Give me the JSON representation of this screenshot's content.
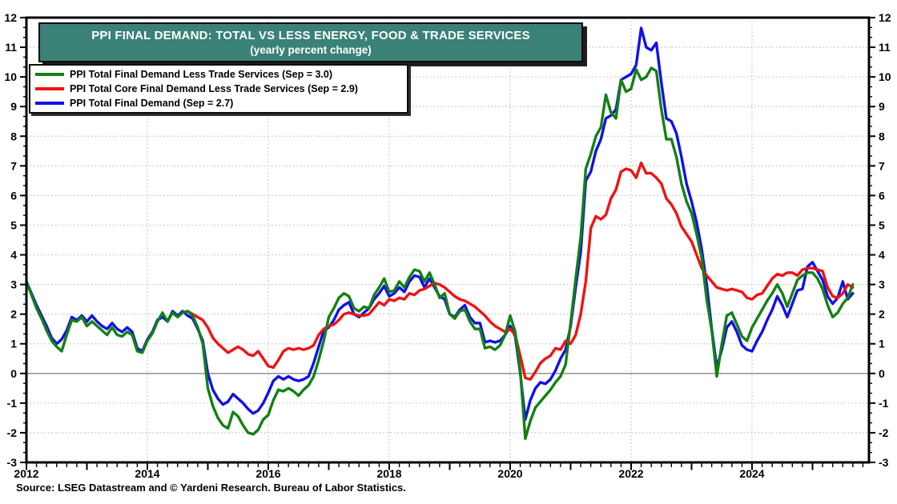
{
  "title": {
    "line1": "PPI FINAL DEMAND: TOTAL VS LESS ENERGY, FOOD & TRADE SERVICES",
    "line2": "(yearly percent change)"
  },
  "source": "Source: LSEG Datastream and © Yardeni Research. Bureau of Labor Statistics.",
  "colors": {
    "title_background": "#3a8178",
    "title_text": "#ffffff",
    "green_line": "#138013",
    "red_line": "#f01212",
    "blue_line": "#1111e8",
    "grid_dotted": "#c3c3c3",
    "zero_line": "#9a9a9a",
    "axis": "#000000"
  },
  "chart_data": {
    "type": "line",
    "title": "PPI FINAL DEMAND: TOTAL VS LESS ENERGY, FOOD & TRADE SERVICES",
    "subtitle": "(yearly percent change)",
    "x_start_year": 2012,
    "x_step_months": 1,
    "xlim": [
      2012,
      2025.93
    ],
    "ylim": [
      -3,
      12
    ],
    "y_tick_step": 1,
    "y_tick_labels": [
      "-3",
      "-2",
      "-1",
      "0",
      "1",
      "2",
      "3",
      "4",
      "5",
      "6",
      "7",
      "8",
      "9",
      "10",
      "11",
      "12"
    ],
    "x_tick_label_years": [
      2012,
      2014,
      2016,
      2018,
      2020,
      2022,
      2024
    ],
    "grid": {
      "horizontal": "dotted at each integer, solid at zero",
      "vertical": "dotted at labeled even years",
      "legend_position": "top-left"
    },
    "series": [
      {
        "name": "PPI Total Final Demand Less Trade Services (Sep = 3.0)",
        "color": "#138013",
        "z": 2,
        "values": [
          3.1,
          2.65,
          2.2,
          1.85,
          1.45,
          1.1,
          0.9,
          0.75,
          1.3,
          1.8,
          1.75,
          1.9,
          1.6,
          1.75,
          1.6,
          1.45,
          1.3,
          1.55,
          1.3,
          1.25,
          1.4,
          1.3,
          0.75,
          0.7,
          1.1,
          1.35,
          1.75,
          2.05,
          1.75,
          2.05,
          1.9,
          2.05,
          2.1,
          1.95,
          1.55,
          1.0,
          -0.5,
          -1.1,
          -1.5,
          -1.75,
          -1.85,
          -1.3,
          -1.45,
          -1.75,
          -2.0,
          -2.05,
          -1.9,
          -1.55,
          -1.4,
          -0.9,
          -0.55,
          -0.6,
          -0.5,
          -0.6,
          -0.75,
          -0.55,
          -0.4,
          -0.1,
          0.45,
          1.1,
          1.9,
          2.2,
          2.55,
          2.7,
          2.6,
          2.2,
          2.1,
          2.25,
          2.2,
          2.65,
          2.9,
          3.2,
          2.75,
          2.8,
          3.1,
          2.9,
          3.25,
          3.5,
          3.45,
          3.1,
          3.4,
          3.0,
          2.55,
          2.7,
          2.0,
          1.85,
          2.1,
          2.15,
          1.75,
          1.5,
          1.5,
          0.85,
          0.9,
          0.8,
          0.95,
          1.3,
          1.95,
          1.4,
          0.1,
          -2.2,
          -1.6,
          -1.15,
          -0.95,
          -0.75,
          -0.55,
          -0.3,
          -0.1,
          0.3,
          1.7,
          3.2,
          4.6,
          6.9,
          7.4,
          8.0,
          8.3,
          9.4,
          8.8,
          8.6,
          9.9,
          9.5,
          9.6,
          10.25,
          9.9,
          10.0,
          10.3,
          10.2,
          8.9,
          7.9,
          7.9,
          7.3,
          6.4,
          5.8,
          5.4,
          4.7,
          3.9,
          2.5,
          1.45,
          -0.1,
          1.0,
          1.95,
          2.05,
          1.65,
          1.25,
          1.1,
          1.55,
          1.85,
          2.15,
          2.45,
          2.7,
          3.0,
          2.7,
          2.25,
          2.7,
          3.15,
          3.3,
          3.4,
          3.4,
          3.2,
          2.85,
          2.3,
          1.9,
          2.05,
          2.35,
          2.55,
          3.0
        ]
      },
      {
        "name": "PPI Total Core Final Demand Less Trade Services (Sep = 2.9)",
        "color": "#f01212",
        "z": 1,
        "values": [
          null,
          null,
          null,
          null,
          null,
          null,
          null,
          null,
          null,
          null,
          null,
          null,
          null,
          null,
          null,
          null,
          null,
          null,
          null,
          null,
          null,
          null,
          null,
          null,
          null,
          null,
          null,
          null,
          null,
          null,
          null,
          2.05,
          2.1,
          2.0,
          1.9,
          1.8,
          1.55,
          1.2,
          1.0,
          0.85,
          0.7,
          0.8,
          0.9,
          0.8,
          0.65,
          0.6,
          0.75,
          0.5,
          0.25,
          0.2,
          0.45,
          0.75,
          0.85,
          0.8,
          0.85,
          0.8,
          0.85,
          0.95,
          1.3,
          1.5,
          1.6,
          1.65,
          1.8,
          2.0,
          2.05,
          2.0,
          1.95,
          1.95,
          2.0,
          2.2,
          2.4,
          2.3,
          2.5,
          2.45,
          2.55,
          2.5,
          2.7,
          2.65,
          2.8,
          2.85,
          2.95,
          3.05,
          3.0,
          2.9,
          2.75,
          2.6,
          2.5,
          2.45,
          2.35,
          2.25,
          2.1,
          1.95,
          1.75,
          1.6,
          1.5,
          1.4,
          1.5,
          1.3,
          0.6,
          -0.15,
          -0.2,
          0.05,
          0.35,
          0.5,
          0.6,
          0.85,
          0.8,
          1.1,
          1.0,
          1.3,
          2.0,
          3.1,
          4.9,
          5.3,
          5.2,
          5.35,
          5.9,
          6.2,
          6.8,
          6.9,
          6.85,
          6.6,
          7.1,
          6.75,
          6.75,
          6.6,
          6.4,
          5.9,
          5.7,
          5.4,
          4.95,
          4.7,
          4.45,
          4.0,
          3.55,
          3.3,
          3.1,
          2.9,
          2.85,
          2.8,
          2.85,
          2.8,
          2.75,
          2.55,
          2.5,
          2.65,
          2.7,
          2.95,
          3.2,
          3.35,
          3.3,
          3.4,
          3.4,
          3.3,
          3.5,
          3.55,
          3.55,
          3.5,
          3.45,
          2.9,
          2.6,
          2.55,
          2.7,
          3.0,
          2.9
        ]
      },
      {
        "name": "PPI Total Final Demand (Sep = 2.7)",
        "color": "#1111e8",
        "z": 0,
        "values": [
          3.1,
          2.7,
          2.3,
          1.95,
          1.6,
          1.2,
          1.0,
          1.15,
          1.45,
          1.9,
          1.8,
          1.95,
          1.75,
          1.95,
          1.75,
          1.6,
          1.5,
          1.7,
          1.5,
          1.4,
          1.55,
          1.4,
          0.85,
          0.75,
          1.15,
          1.4,
          1.8,
          1.9,
          1.75,
          2.1,
          1.95,
          2.1,
          1.95,
          1.85,
          1.5,
          1.1,
          0.0,
          -0.55,
          -0.85,
          -1.05,
          -0.95,
          -0.7,
          -0.85,
          -1.0,
          -1.2,
          -1.35,
          -1.25,
          -1.0,
          -0.65,
          -0.25,
          -0.1,
          -0.2,
          -0.1,
          -0.2,
          -0.25,
          -0.2,
          -0.1,
          0.35,
          0.9,
          1.45,
          1.55,
          1.8,
          2.15,
          2.3,
          2.4,
          2.0,
          1.9,
          2.05,
          2.2,
          2.5,
          2.7,
          2.95,
          2.6,
          2.7,
          2.9,
          2.75,
          3.1,
          3.3,
          3.25,
          2.9,
          3.2,
          2.9,
          2.6,
          2.5,
          2.0,
          1.9,
          2.15,
          2.3,
          1.9,
          1.7,
          1.7,
          1.05,
          1.1,
          1.05,
          1.1,
          1.3,
          1.6,
          1.25,
          0.0,
          -1.55,
          -0.9,
          -0.5,
          -0.3,
          -0.35,
          -0.2,
          0.1,
          0.5,
          0.8,
          1.6,
          2.9,
          4.1,
          6.5,
          6.8,
          7.5,
          7.9,
          8.6,
          8.7,
          8.9,
          9.9,
          10.0,
          10.1,
          10.4,
          11.65,
          11.0,
          10.9,
          11.15,
          9.8,
          8.6,
          8.5,
          8.1,
          7.3,
          6.4,
          5.8,
          5.1,
          4.2,
          3.0,
          1.5,
          0.2,
          0.8,
          1.55,
          1.75,
          1.4,
          0.95,
          0.8,
          0.75,
          1.1,
          1.4,
          1.8,
          2.15,
          2.6,
          2.3,
          1.9,
          2.35,
          2.8,
          2.85,
          3.6,
          3.75,
          3.45,
          3.15,
          2.6,
          2.35,
          2.55,
          3.1,
          2.5,
          2.7
        ]
      }
    ]
  }
}
